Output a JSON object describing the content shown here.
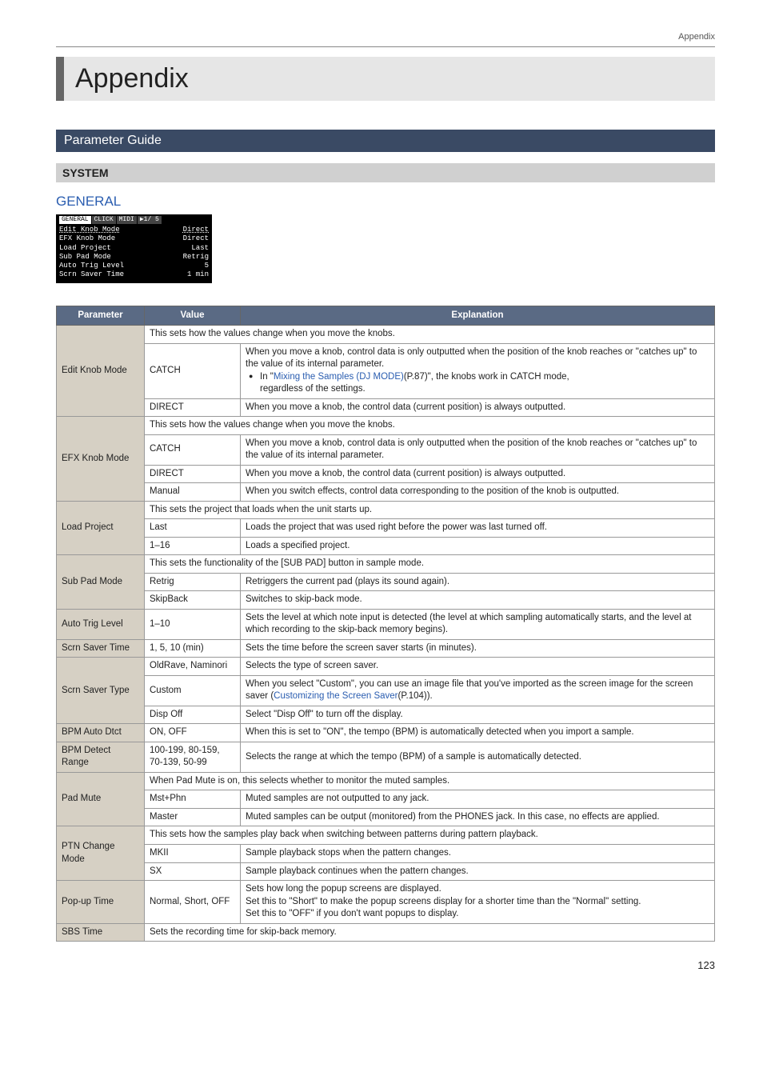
{
  "header": {
    "running": "Appendix"
  },
  "title": "Appendix",
  "section": "Parameter Guide",
  "subsection": "SYSTEM",
  "tab": "GENERAL",
  "lcd": {
    "tabs": [
      "GENERAL",
      "CLICK",
      "MIDI",
      "▶1/ 5"
    ],
    "rows": [
      {
        "k": "Edit Knob Mode",
        "v": "Direct"
      },
      {
        "k": "EFX Knob Mode",
        "v": "Direct"
      },
      {
        "k": "Load Project",
        "v": "Last"
      },
      {
        "k": "Sub Pad Mode",
        "v": "Retrig"
      },
      {
        "k": "Auto Trig Level",
        "v": "5"
      },
      {
        "k": "Scrn Saver Time",
        "v": "1 min"
      }
    ]
  },
  "columns": {
    "p": "Parameter",
    "v": "Value",
    "e": "Explanation"
  },
  "t": {
    "editknob": {
      "name": "Edit Knob Mode",
      "intro": "This sets how the values change when you move the knobs.",
      "catch_v": "CATCH",
      "catch_l1": "When you move a knob, control data is only outputted when the position of the knob reaches or \"catches up\" to the value of its internal parameter.",
      "catch_b_pre": "In \"",
      "catch_b_link": "Mixing the Samples (DJ MODE)",
      "catch_b_post": "(P.87)\", the knobs work in CATCH mode, ",
      "catch_b_cont": "regardless of the settings.",
      "direct_v": "DIRECT",
      "direct_e": "When you move a knob, the control data (current position) is always outputted."
    },
    "efxknob": {
      "name": "EFX Knob Mode",
      "intro": "This sets how the values change when you move the knobs.",
      "catch_v": "CATCH",
      "catch_e": "When you move a knob, control data is only outputted when the position of the knob reaches or \"catches up\" to the value of its internal parameter.",
      "direct_v": "DIRECT",
      "direct_e": "When you move a knob, the control data (current position) is always outputted.",
      "manual_v": "Manual",
      "manual_e": "When you switch effects, control data corresponding to the position of the knob is outputted."
    },
    "loadproj": {
      "name": "Load Project",
      "intro": "This sets the project that loads when the unit starts up.",
      "last_v": "Last",
      "last_e": "Loads the project that was used right before the power was last turned off.",
      "range_v": "1–16",
      "range_e": "Loads a specified project."
    },
    "subpad": {
      "name": "Sub Pad Mode",
      "intro": "This sets the functionality of the [SUB PAD] button in sample mode.",
      "retrig_v": "Retrig",
      "retrig_e": "Retriggers the current pad (plays its sound again).",
      "skip_v": "SkipBack",
      "skip_e": "Switches to skip-back mode."
    },
    "autotrig": {
      "name": "Auto Trig Level",
      "v": "1–10",
      "e": "Sets the level at which note input is detected (the level at which sampling automatically starts, and the level at which recording to the skip-back memory begins)."
    },
    "scrntime": {
      "name": "Scrn Saver Time",
      "v": "1, 5, 10 (min)",
      "e": "Sets the time before the screen saver starts (in minutes)."
    },
    "scrntype": {
      "name": "Scrn Saver Type",
      "old_v": "OldRave, Naminori",
      "old_e": "Selects the type of screen saver.",
      "custom_v": "Custom",
      "custom_pre": "When you select \"Custom\", you can use an image file that you've imported as the screen image for the screen saver (",
      "custom_link": "Customizing the Screen Saver",
      "custom_post": "(P.104)).",
      "disp_v": "Disp Off",
      "disp_e": "Select \"Disp Off\" to turn off the display."
    },
    "bpmauto": {
      "name": "BPM Auto Dtct",
      "v": "ON, OFF",
      "e": "When this is set to \"ON\", the tempo (BPM) is automatically detected when you import a sample."
    },
    "bpmrange": {
      "name": "BPM Detect Range",
      "v": "100-199, 80-159, 70-139, 50-99",
      "e": "Selects the range at which the tempo (BPM) of a sample is automatically detected."
    },
    "padmute": {
      "name": "Pad Mute",
      "intro": "When Pad Mute is on, this selects whether to monitor the muted samples.",
      "mst_v": "Mst+Phn",
      "mst_e": "Muted samples are not outputted to any jack.",
      "master_v": "Master",
      "master_e": "Muted samples can be output (monitored) from the PHONES jack. In this case, no effects are applied."
    },
    "ptn": {
      "name": "PTN Change Mode",
      "intro": "This sets how the samples play back when switching between patterns during pattern playback.",
      "mk_v": "MKII",
      "mk_e": "Sample playback stops when the pattern changes.",
      "sx_v": "SX",
      "sx_e": "Sample playback continues when the pattern changes."
    },
    "popup": {
      "name": "Pop-up Time",
      "v": "Normal, Short, OFF",
      "l1": "Sets how long the popup screens are displayed.",
      "l2": "Set this to \"Short\" to make the popup screens display for a shorter time than the \"Normal\" setting.",
      "l3": "Set this to \"OFF\" if you don't want popups to display."
    },
    "sbs": {
      "name": "SBS Time",
      "e": "Sets the recording time for skip-back memory."
    }
  },
  "pagenum": "123"
}
